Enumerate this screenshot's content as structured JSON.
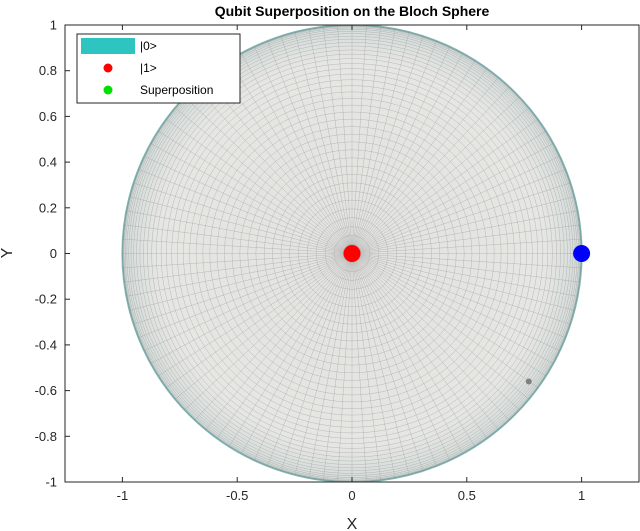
{
  "chart_data": {
    "type": "scatter",
    "title": "Qubit Superposition on the Bloch Sphere",
    "xlabel": "X",
    "ylabel": "Y",
    "xlim": [
      -1.25,
      1.25
    ],
    "ylim": [
      -1,
      1
    ],
    "xticks": [
      -1,
      -0.5,
      0,
      0.5,
      1
    ],
    "xtick_labels": [
      "-1",
      "-0.5",
      "0",
      "0.5",
      "1"
    ],
    "yticks": [
      1,
      0.8,
      0.6,
      0.4,
      0.2,
      0,
      -0.2,
      -0.4,
      -0.6,
      -0.8,
      -1
    ],
    "ytick_labels": [
      "1",
      "0.8",
      "0.6",
      "0.4",
      "0.2",
      "0",
      "-0.2",
      "-0.4",
      "-0.6",
      "-0.8",
      "-1"
    ],
    "sphere": {
      "center": [
        0,
        0
      ],
      "radius": 1,
      "colors": {
        "edge": "#7fb9b9",
        "face": "#e6e6e3",
        "mesh": "#8a8a8a"
      }
    },
    "legend": {
      "position": "top-left",
      "entries": [
        {
          "label": "|0>",
          "marker": "patch",
          "color": "#2ec4bf"
        },
        {
          "label": "|1>",
          "marker": "dot",
          "color": "#ff0000"
        },
        {
          "label": "Superposition",
          "marker": "dot",
          "color": "#00e000"
        }
      ]
    },
    "points": [
      {
        "name": "|1>",
        "x": 0,
        "y": 0,
        "color": "#ff0000",
        "size": "large"
      },
      {
        "name": "point-blue",
        "x": 1,
        "y": 0,
        "color": "#0000ff",
        "size": "large"
      },
      {
        "name": "point-gray",
        "x": 0.77,
        "y": -0.56,
        "color": "#808080",
        "size": "small"
      }
    ]
  }
}
